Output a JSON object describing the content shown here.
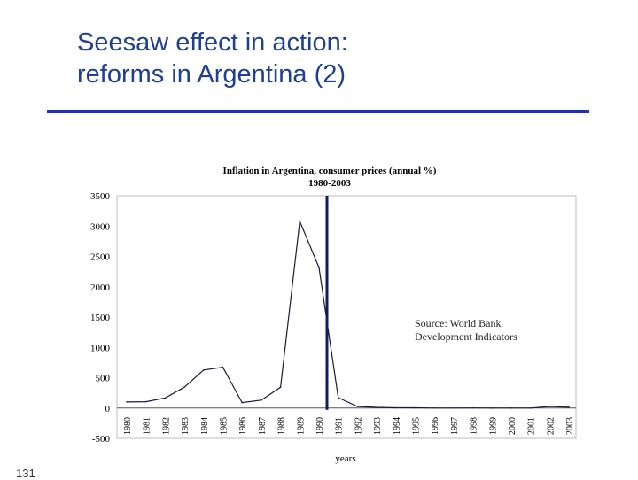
{
  "slide": {
    "title_line1": "Seesaw effect in action:",
    "title_line2": "reforms in Argentina (2)",
    "slide_number": "131"
  },
  "chart_data": {
    "type": "line",
    "title": "Inflation in Argentina, consumer prices (annual %)",
    "subtitle": "1980-2003",
    "xlabel": "years",
    "ylabel": "",
    "ylim": [
      -500,
      3500
    ],
    "yticks": [
      -500,
      0,
      500,
      1000,
      1500,
      2000,
      2500,
      3000,
      3500
    ],
    "x": [
      "1980",
      "1981",
      "1982",
      "1983",
      "1984",
      "1985",
      "1986",
      "1987",
      "1988",
      "1989",
      "1990",
      "1991",
      "1992",
      "1993",
      "1994",
      "1995",
      "1996",
      "1997",
      "1998",
      "1999",
      "2000",
      "2001",
      "2002",
      "2003"
    ],
    "values": [
      100,
      105,
      165,
      344,
      627,
      672,
      90,
      131,
      343,
      3080,
      2314,
      172,
      25,
      11,
      4,
      3,
      0,
      0,
      1,
      -1,
      -1,
      -1,
      26,
      13
    ],
    "grid": false,
    "colors": {
      "series": "#1a1a3a",
      "marker_line": "#0d1f5a"
    },
    "annotation": {
      "line1": "Source: World Bank",
      "line2": "Development Indicators"
    },
    "vertical_marker_x": "1990"
  }
}
